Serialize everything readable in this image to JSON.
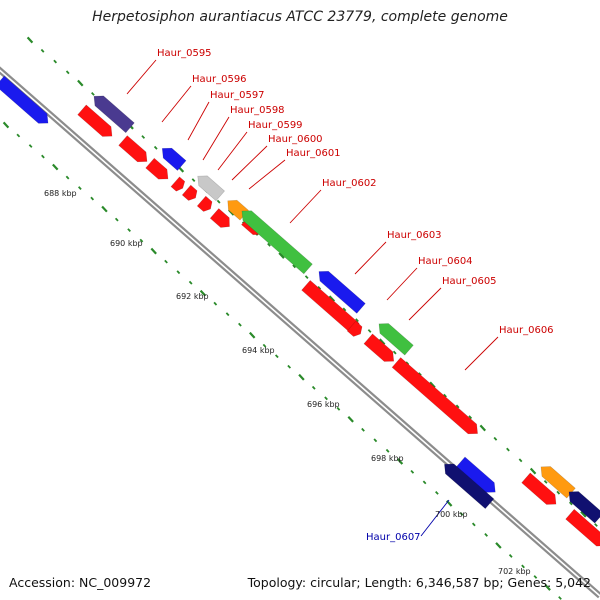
{
  "title": "Herpetosiphon aurantiacus ATCC 23779, complete genome",
  "accession_text": "Accession: NC_009972",
  "summary_text": "Topology: circular; Length: 6,346,587 bp; Genes: 5,042",
  "colors": {
    "backbone": "#8c8c8c",
    "tick": "#2a8a2a",
    "label_red": "#cc0000",
    "label_blue": "#0000aa",
    "red": "#ff1010",
    "blue": "#1a1aee",
    "navy": "#101070",
    "purple": "#4a3a90",
    "green": "#40c040",
    "orange": "#ff9a10",
    "silver": "#c8c8c8"
  },
  "kbp_labels": [
    "688 kbp",
    "690 kbp",
    "692 kbp",
    "694 kbp",
    "696 kbp",
    "698 kbp",
    "700 kbp",
    "702 kbp"
  ],
  "gene_labels": [
    {
      "name": "Haur_0595",
      "color": "red"
    },
    {
      "name": "Haur_0596",
      "color": "red"
    },
    {
      "name": "Haur_0597",
      "color": "red"
    },
    {
      "name": "Haur_0598",
      "color": "red"
    },
    {
      "name": "Haur_0599",
      "color": "red"
    },
    {
      "name": "Haur_0600",
      "color": "red"
    },
    {
      "name": "Haur_0601",
      "color": "red"
    },
    {
      "name": "Haur_0602",
      "color": "red"
    },
    {
      "name": "Haur_0603",
      "color": "red"
    },
    {
      "name": "Haur_0604",
      "color": "red"
    },
    {
      "name": "Haur_0605",
      "color": "red"
    },
    {
      "name": "Haur_0606",
      "color": "red"
    },
    {
      "name": "Haur_0607",
      "color": "blue"
    }
  ]
}
